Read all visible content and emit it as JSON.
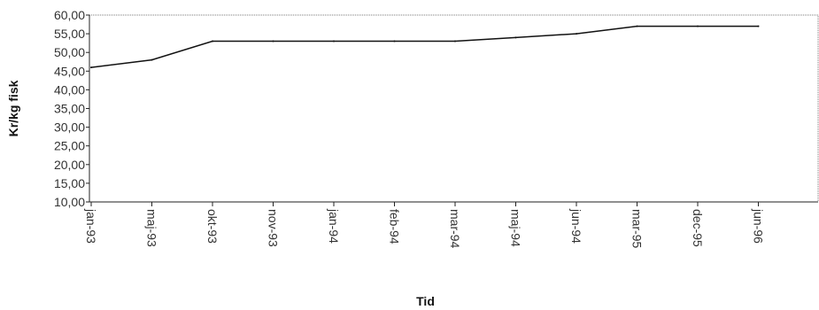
{
  "chart_data": {
    "type": "line",
    "title": "",
    "xlabel": "Tid",
    "ylabel": "Kr/kg fisk",
    "categories": [
      "jan-93",
      "maj-93",
      "okt-93",
      "nov-93",
      "jan-94",
      "feb-94",
      "mar-94",
      "maj-94",
      "jun-94",
      "mar-95",
      "dec-95",
      "jun-96"
    ],
    "series": [
      {
        "values": [
          46,
          48,
          53,
          53,
          53,
          53,
          53,
          54,
          55,
          57,
          57,
          57
        ]
      }
    ],
    "ylim": [
      10,
      60
    ],
    "yticks": [
      "10,00",
      "15,00",
      "20,00",
      "25,00",
      "30,00",
      "35,00",
      "40,00",
      "45,00",
      "50,00",
      "55,00",
      "60,00"
    ],
    "grid": false,
    "legend": "none",
    "line_color": "#111111"
  }
}
